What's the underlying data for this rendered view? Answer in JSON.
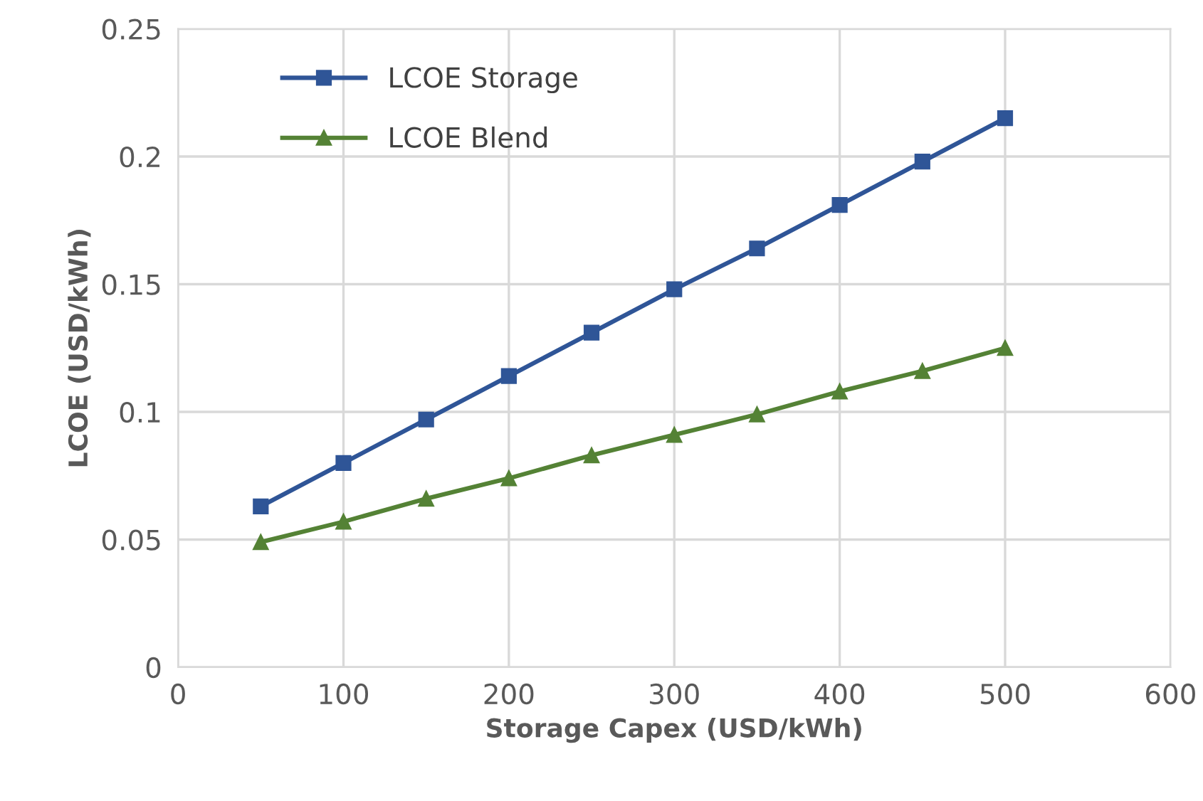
{
  "chart_data": {
    "type": "line",
    "xlabel": "Storage Capex (USD/kWh)",
    "ylabel": "LCOE (USD/kWh)",
    "x": [
      50,
      100,
      150,
      200,
      250,
      300,
      350,
      400,
      450,
      500
    ],
    "series": [
      {
        "name": "LCOE Storage",
        "color": "#2f5597",
        "marker": "square",
        "values": [
          0.063,
          0.08,
          0.097,
          0.114,
          0.131,
          0.148,
          0.164,
          0.181,
          0.198,
          0.215
        ]
      },
      {
        "name": "LCOE Blend",
        "color": "#548235",
        "marker": "triangle",
        "values": [
          0.049,
          0.057,
          0.066,
          0.074,
          0.083,
          0.091,
          0.099,
          0.108,
          0.116,
          0.125
        ]
      }
    ],
    "xlim": [
      0,
      600
    ],
    "xticks": [
      0,
      100,
      200,
      300,
      400,
      500,
      600
    ],
    "ylim": [
      0,
      0.25
    ],
    "yticks": [
      0,
      0.05,
      0.1,
      0.15,
      0.2,
      0.25
    ],
    "grid": true,
    "legend": "top left",
    "line_style": "solid"
  }
}
